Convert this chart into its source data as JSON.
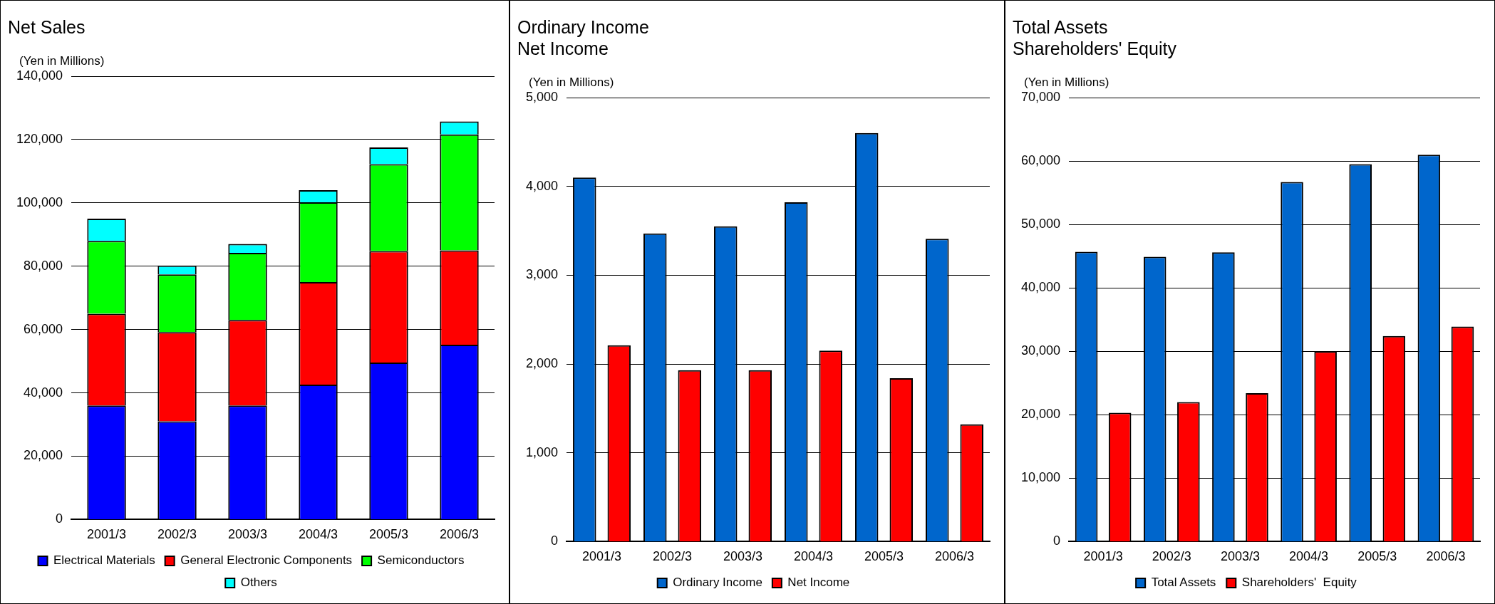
{
  "chart_data": [
    {
      "type": "bar",
      "title": "Net Sales",
      "ylabel": "(Yen in Millions)",
      "stacked": true,
      "categories": [
        "2001/3",
        "2002/3",
        "2003/3",
        "2004/3",
        "2005/3",
        "2006/3"
      ],
      "series": [
        {
          "name": "Electrical Materials",
          "color": "#0000ff",
          "values": [
            36000,
            31000,
            36000,
            42600,
            49600,
            55200
          ]
        },
        {
          "name": "General Electronic Components",
          "color": "#ff0000",
          "values": [
            29000,
            28200,
            27000,
            32400,
            35200,
            29800
          ]
        },
        {
          "name": "Semiconductors",
          "color": "#00ff00",
          "values": [
            23000,
            18200,
            21200,
            25200,
            27400,
            36600
          ]
        },
        {
          "name": "Others",
          "color": "#00ffff",
          "values": [
            7000,
            2800,
            2800,
            3800,
            5300,
            4100
          ]
        }
      ],
      "ylim": [
        0,
        140000
      ],
      "yticks": [
        {
          "value": 0,
          "label": "0"
        },
        {
          "value": 20000,
          "label": "20,000"
        },
        {
          "value": 40000,
          "label": "40,000"
        },
        {
          "value": 60000,
          "label": "60,000"
        },
        {
          "value": 80000,
          "label": "80,000"
        },
        {
          "value": 100000,
          "label": "100,000"
        },
        {
          "value": 120000,
          "label": "120,000"
        },
        {
          "value": 140000,
          "label": "140,000"
        }
      ],
      "grid": "y",
      "legend": "bottom"
    },
    {
      "type": "bar",
      "title": "Ordinary Income\nNet Income",
      "ylabel": "(Yen in Millions)",
      "categories": [
        "2001/3",
        "2002/3",
        "2003/3",
        "2004/3",
        "2005/3",
        "2006/3"
      ],
      "series": [
        {
          "name": "Ordinary Income",
          "color": "#0066cc",
          "values": [
            4100,
            3470,
            3550,
            3820,
            4600,
            3410
          ]
        },
        {
          "name": "Net Income",
          "color": "#ff0000",
          "values": [
            2210,
            1930,
            1930,
            2150,
            1840,
            1320
          ]
        }
      ],
      "ylim": [
        0,
        5000
      ],
      "yticks": [
        {
          "value": 0,
          "label": "0"
        },
        {
          "value": 1000,
          "label": "1,000"
        },
        {
          "value": 2000,
          "label": "2,000"
        },
        {
          "value": 3000,
          "label": "3,000"
        },
        {
          "value": 4000,
          "label": "4,000"
        },
        {
          "value": 5000,
          "label": "5,000"
        }
      ],
      "grid": "y",
      "legend": "bottom"
    },
    {
      "type": "bar",
      "title": "Total Assets\nShareholders' Equity",
      "ylabel": "(Yen in Millions)",
      "categories": [
        "2001/3",
        "2002/3",
        "2003/3",
        "2004/3",
        "2005/3",
        "2006/3"
      ],
      "series": [
        {
          "name": "Total Assets",
          "color": "#0066cc",
          "values": [
            45700,
            44900,
            45600,
            56700,
            59500,
            61000
          ]
        },
        {
          "name": "Shareholders'  Equity",
          "color": "#ff0000",
          "values": [
            20300,
            22000,
            23400,
            30000,
            32400,
            33900
          ]
        }
      ],
      "ylim": [
        0,
        70000
      ],
      "yticks": [
        {
          "value": 0,
          "label": "0"
        },
        {
          "value": 10000,
          "label": "10,000"
        },
        {
          "value": 20000,
          "label": "20,000"
        },
        {
          "value": 30000,
          "label": "30,000"
        },
        {
          "value": 40000,
          "label": "40,000"
        },
        {
          "value": 50000,
          "label": "50,000"
        },
        {
          "value": 60000,
          "label": "60,000"
        },
        {
          "value": 70000,
          "label": "70,000"
        }
      ],
      "grid": "y",
      "legend": "bottom"
    }
  ]
}
